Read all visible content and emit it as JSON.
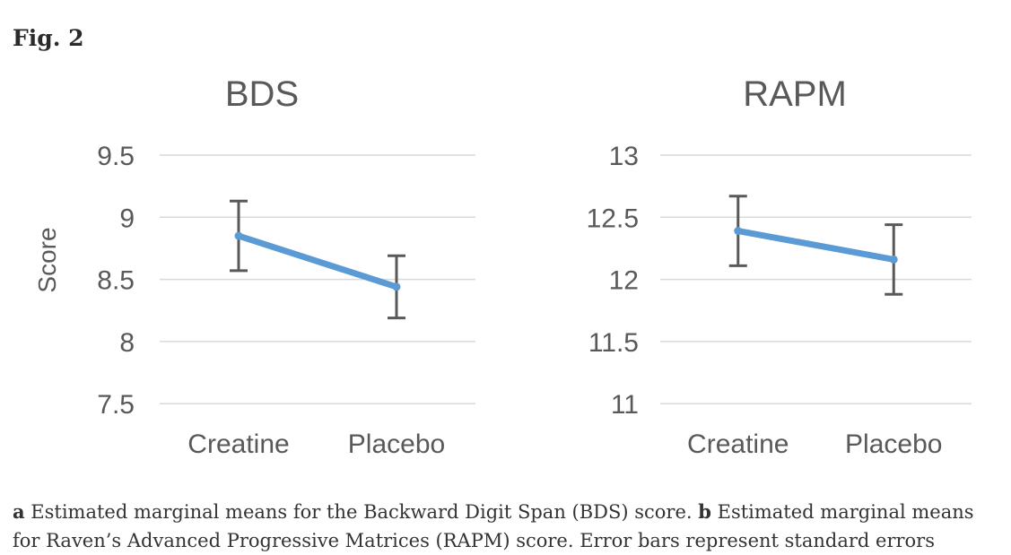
{
  "figure_label": "Fig. 2",
  "colors": {
    "accent_blue": "#5b9bd5",
    "chart_text_gray": "#595959",
    "gridline_gray": "#d9d9d9",
    "error_bar_gray": "#595959",
    "caption_text": "#333333",
    "background": "#ffffff"
  },
  "chart_data": [
    {
      "type": "line",
      "title": "BDS",
      "ylabel": "Score",
      "xlabel": "",
      "categories": [
        "Creatine",
        "Placebo"
      ],
      "series": [
        {
          "name": "Estimated marginal mean score",
          "values": [
            8.85,
            8.44
          ],
          "error_bars": [
            0.28,
            0.25
          ]
        }
      ],
      "ylim": [
        7.5,
        9.5
      ],
      "yticks": [
        9.5,
        9,
        8.5,
        8,
        7.5
      ],
      "grid": true,
      "legend": false
    },
    {
      "type": "line",
      "title": "RAPM",
      "ylabel": "",
      "xlabel": "",
      "categories": [
        "Creatine",
        "Placebo"
      ],
      "series": [
        {
          "name": "Estimated marginal mean score",
          "values": [
            12.39,
            12.16
          ],
          "error_bars": [
            0.28,
            0.28
          ]
        }
      ],
      "ylim": [
        11,
        13
      ],
      "yticks": [
        13,
        12.5,
        12,
        11.5,
        11
      ],
      "grid": true,
      "legend": false
    }
  ],
  "caption": {
    "parts": [
      {
        "text": "a",
        "bold": true
      },
      {
        "text": " Estimated marginal means for the Backward Digit Span (BDS) score. ",
        "bold": false
      },
      {
        "text": "b",
        "bold": true
      },
      {
        "text": " Estimated marginal means for Raven’s Advanced Progressive Matrices (RAPM) score. Error bars represent standard errors",
        "bold": false
      }
    ]
  }
}
